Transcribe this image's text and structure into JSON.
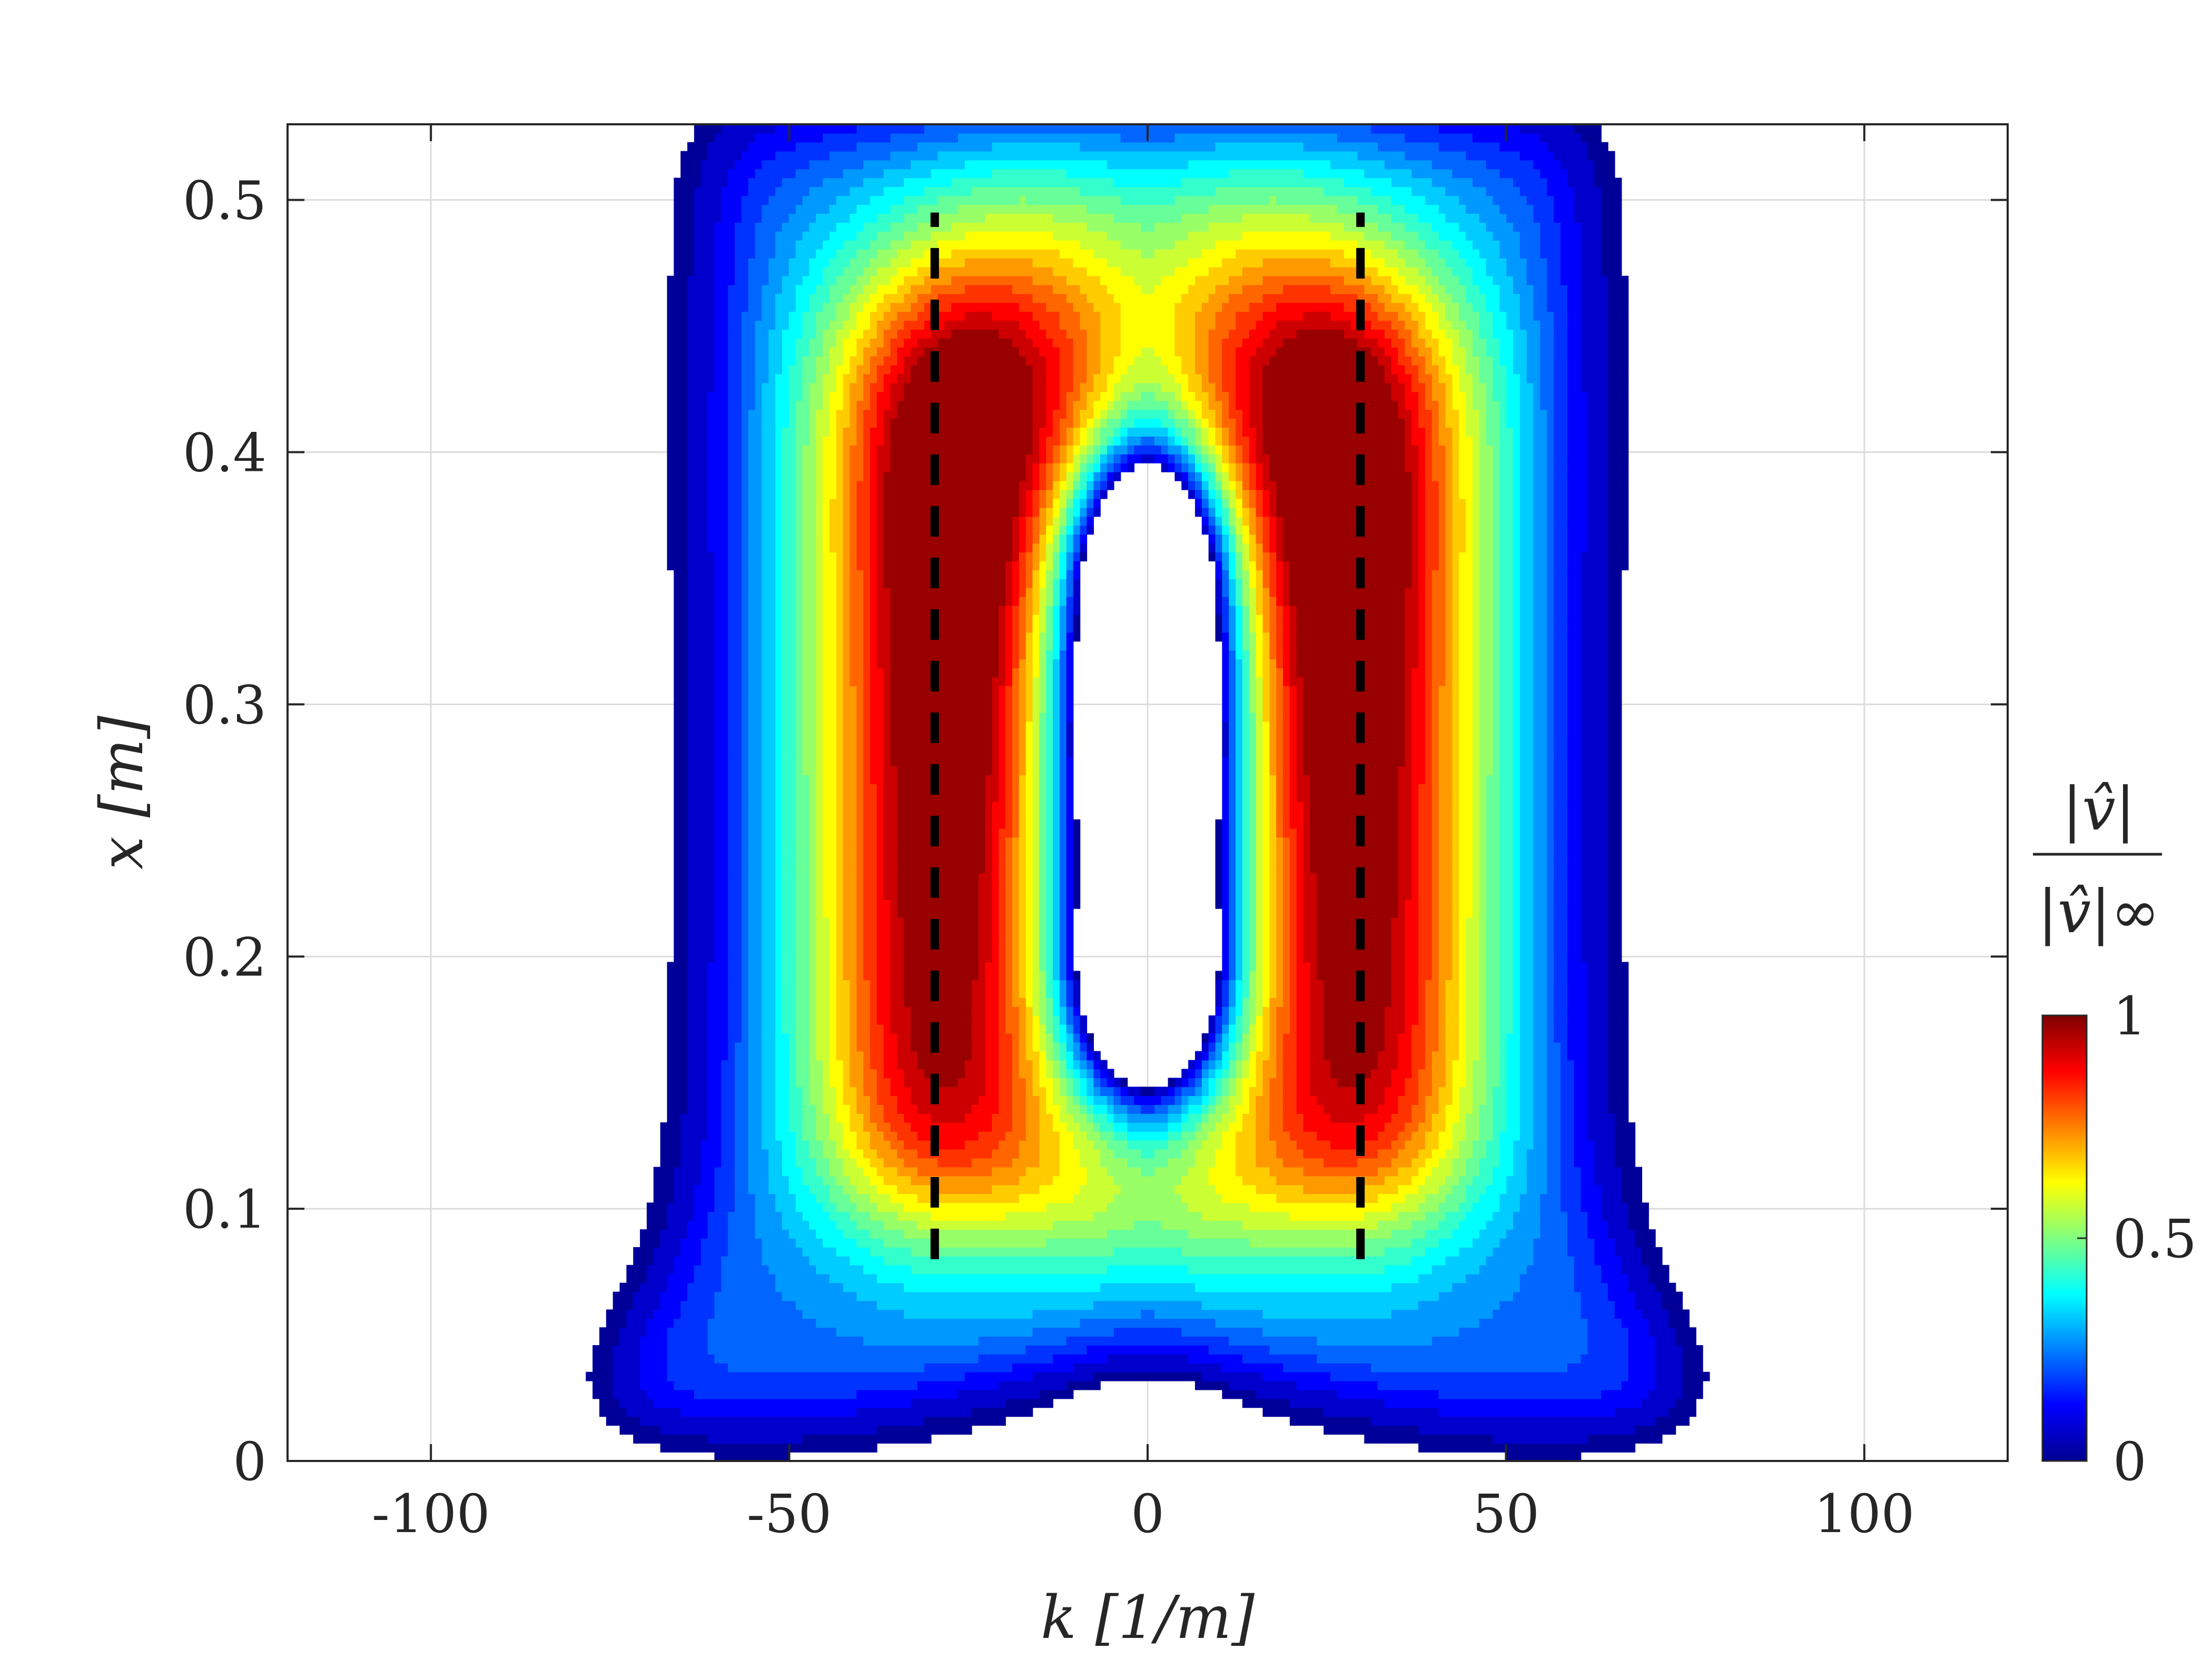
{
  "chart_data": {
    "type": "contour",
    "xlabel": "k [1/m]",
    "ylabel": "x [m]",
    "xlim": [
      -120,
      120
    ],
    "ylim": [
      0,
      0.53
    ],
    "xticks": [
      -100,
      -50,
      0,
      50,
      100
    ],
    "yticks": [
      0,
      0.1,
      0.2,
      0.3,
      0.4,
      0.5
    ],
    "xtick_labels": [
      "-100",
      "-50",
      "0",
      "50",
      "100"
    ],
    "ytick_labels": [
      "0",
      "0.1",
      "0.2",
      "0.3",
      "0.4",
      "0.5"
    ],
    "grid": true,
    "colormap": "jet",
    "colorbar": {
      "label_numerator": "|v̂|",
      "label_denominator": "|v̂|∞",
      "range": [
        0,
        1
      ],
      "ticks": [
        0,
        0.5,
        1
      ],
      "tick_labels": [
        "0",
        "0.5",
        "1"
      ]
    },
    "contour_levels": 20,
    "field_description_values": {
      "peak_locations": [
        {
          "k": -29,
          "x": 0.33,
          "value": 1.0
        },
        {
          "k": 29,
          "x": 0.33,
          "value": 1.0
        }
      ],
      "minimum_locations": [
        {
          "k": 0,
          "x": 0.355,
          "value": 0.0
        },
        {
          "k": 0,
          "x": 0.285,
          "value": 0.0
        },
        {
          "k": 0,
          "x": 0.195,
          "value": 0.0
        }
      ]
    },
    "reference_lines": [
      {
        "k": -29.7,
        "x_range": [
          0.08,
          0.495
        ],
        "style": "dashed",
        "color": "#000000"
      },
      {
        "k": 29.7,
        "x_range": [
          0.08,
          0.495
        ],
        "style": "dashed",
        "color": "#000000"
      }
    ]
  }
}
